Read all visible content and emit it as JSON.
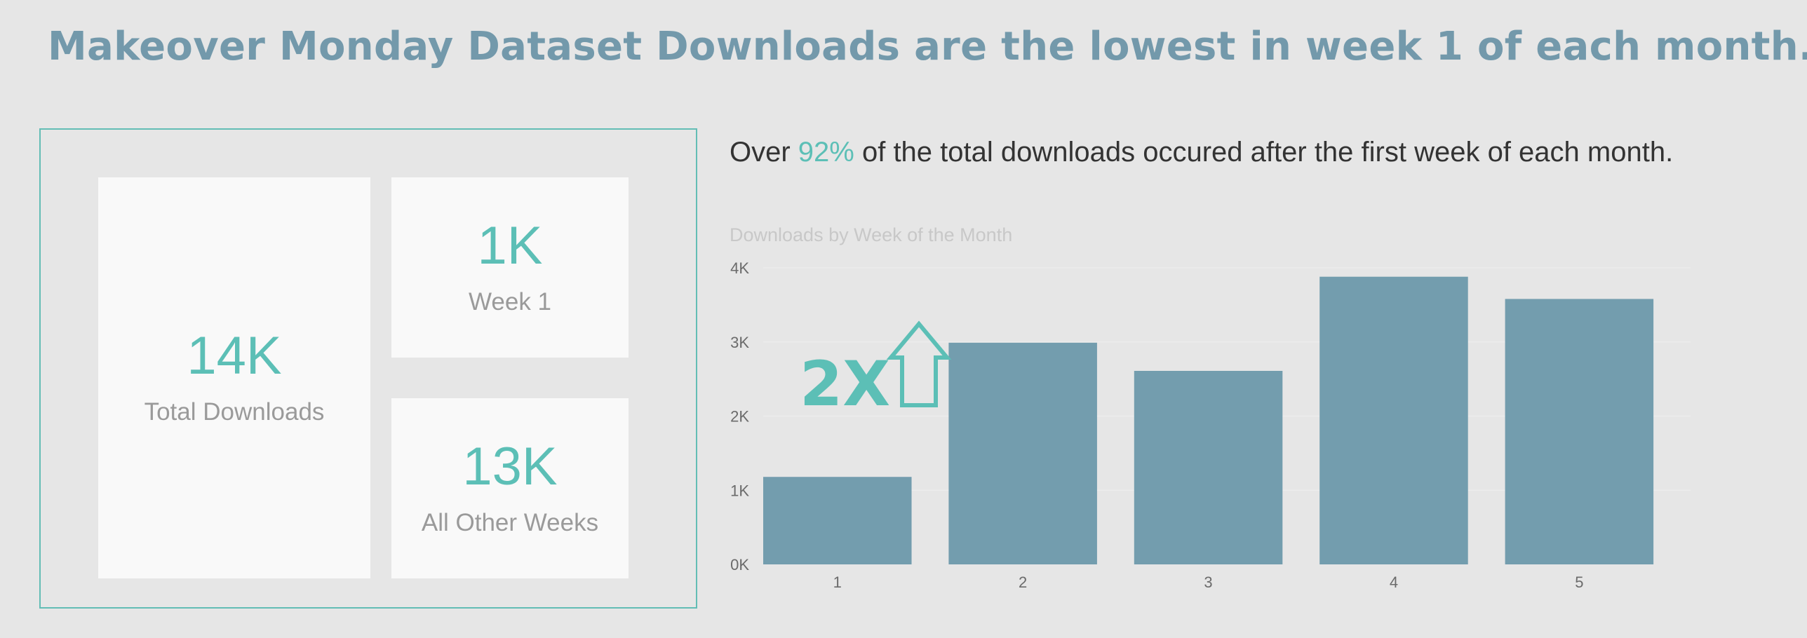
{
  "header": {
    "title": "Makeover Monday Dataset Downloads are the lowest in week 1 of each month."
  },
  "kpis": {
    "total": {
      "value": "14K",
      "label": "Total Downloads"
    },
    "week1": {
      "value": "1K",
      "label": "Week 1"
    },
    "others": {
      "value": "13K",
      "label": "All Other Weeks"
    }
  },
  "insight": {
    "prefix": "Over ",
    "highlight": "92%",
    "suffix": " of the total downloads occured after the first week of each month."
  },
  "callout": {
    "text": "2X"
  },
  "colors": {
    "bar": "#739dae",
    "accent": "#5cbfb6",
    "title": "#7399ab",
    "frame": "#63bdb5"
  },
  "icons": {
    "callout_arrow": "up-arrow-outline-icon"
  },
  "chart_data": {
    "type": "bar",
    "title": "Downloads by Week of the Month",
    "categories": [
      "1",
      "2",
      "3",
      "4",
      "5"
    ],
    "values": [
      1180,
      2990,
      2610,
      3880,
      3580
    ],
    "xlabel": "",
    "ylabel": "",
    "ylim": [
      0,
      4000
    ],
    "yticks": [
      0,
      1000,
      2000,
      3000,
      4000
    ],
    "ytick_labels": [
      "0K",
      "1K",
      "2K",
      "3K",
      "4K"
    ],
    "grid": true,
    "legend": "none"
  }
}
